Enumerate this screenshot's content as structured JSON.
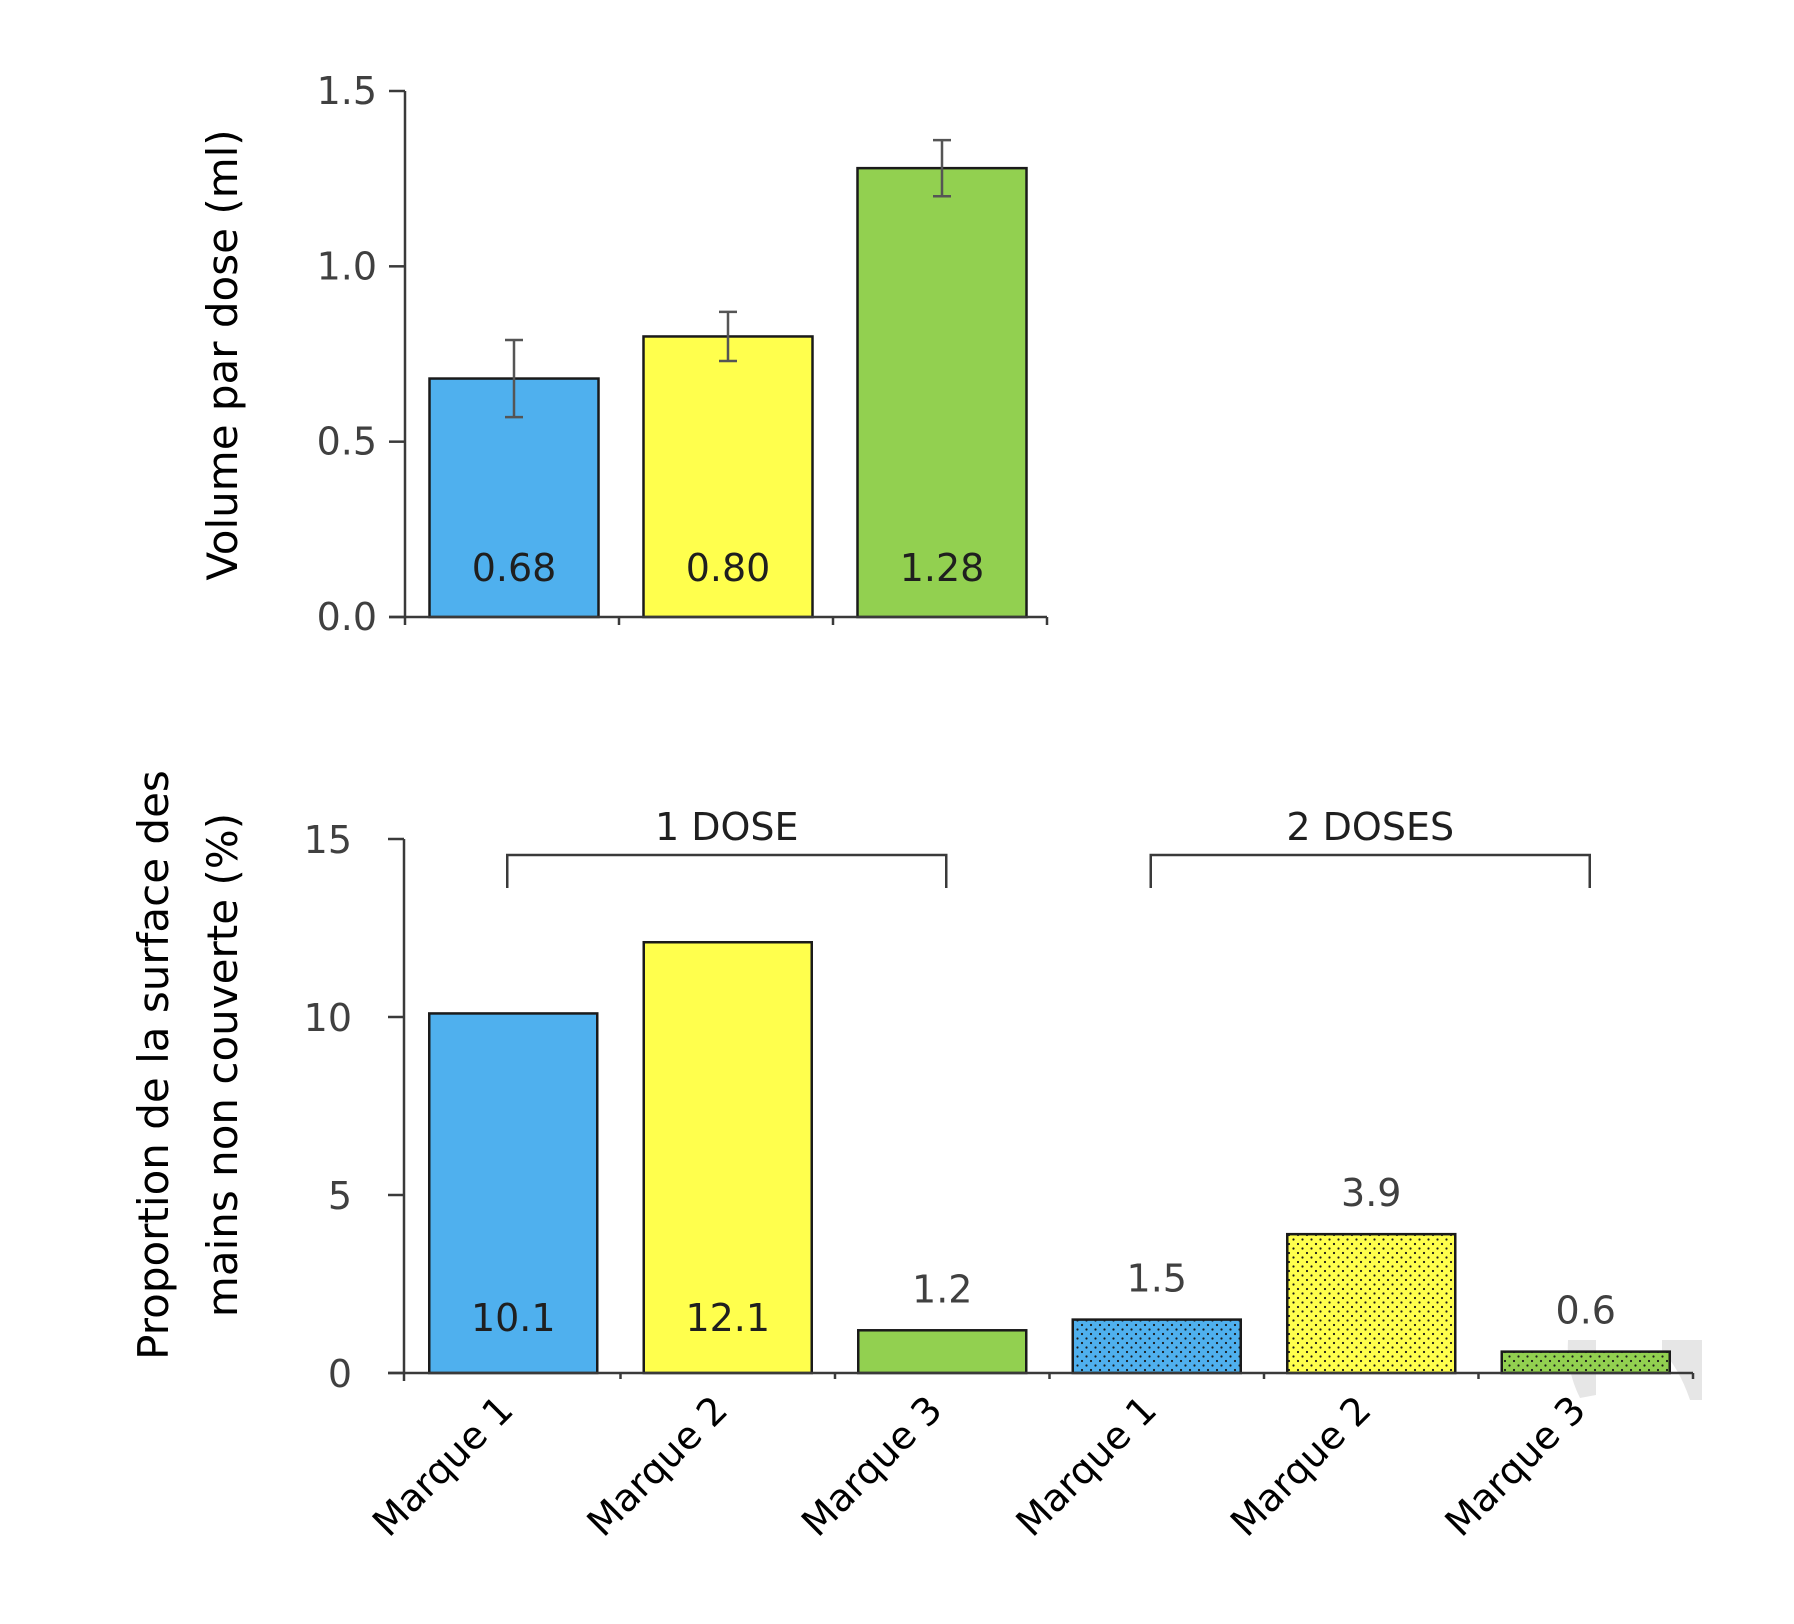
{
  "chart_data": [
    {
      "type": "bar",
      "title": "",
      "xlabel": "",
      "ylabel": "Volume par dose (ml)",
      "ylim": [
        0,
        1.5
      ],
      "yticks": [
        "0.0",
        "0.5",
        "1.0",
        "1.5"
      ],
      "ytick_values": [
        0,
        0.5,
        1.0,
        1.5
      ],
      "categories": [
        "Marque 1",
        "Marque 2",
        "Marque 3"
      ],
      "values": [
        0.68,
        0.8,
        1.28
      ],
      "value_labels": [
        "0.68",
        "0.80",
        "1.28"
      ],
      "error": [
        0.11,
        0.07,
        0.08
      ],
      "colors": [
        "#4fb0ee",
        "#ffff4d",
        "#92d050"
      ],
      "grid": false,
      "legend": "none"
    },
    {
      "type": "bar",
      "title": "",
      "xlabel": "",
      "ylabel_lines": [
        "Proportion de la surface des",
        "mains non couverte (%)"
      ],
      "ylabel": "Proportion de la surface des mains non couverte (%)",
      "ylim": [
        0,
        15
      ],
      "yticks": [
        "0",
        "5",
        "10",
        "15"
      ],
      "ytick_values": [
        0,
        5,
        10,
        15
      ],
      "categories": [
        "Marque 1",
        "Marque 2",
        "Marque 3",
        "Marque 1",
        "Marque 2",
        "Marque 3"
      ],
      "groups": [
        {
          "label": "1 DOSE",
          "indices": [
            0,
            1,
            2
          ],
          "pattern": "solid"
        },
        {
          "label": "2 DOSES",
          "indices": [
            3,
            4,
            5
          ],
          "pattern": "dotted"
        }
      ],
      "values": [
        10.1,
        12.1,
        1.2,
        1.5,
        3.9,
        0.6
      ],
      "value_labels": [
        "10.1",
        "12.1",
        "1.2",
        "1.5",
        "3.9",
        "0.6"
      ],
      "label_inside": [
        true,
        true,
        false,
        false,
        false,
        false
      ],
      "colors": [
        "#4fb0ee",
        "#ffff4d",
        "#92d050",
        "#4fb0ee",
        "#ffff4d",
        "#92d050"
      ],
      "grid": false,
      "legend": "none"
    }
  ]
}
